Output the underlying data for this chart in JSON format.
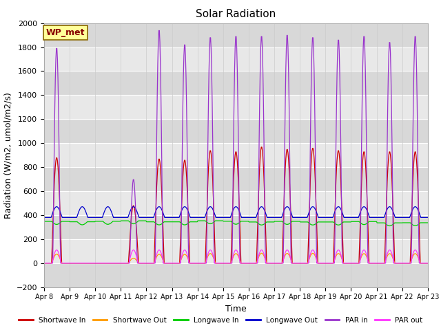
{
  "title": "Solar Radiation",
  "ylabel": "Radiation (W/m2, umol/m2/s)",
  "xlabel": "Time",
  "ylim": [
    -200,
    2000
  ],
  "yticks": [
    -200,
    0,
    200,
    400,
    600,
    800,
    1000,
    1200,
    1400,
    1600,
    1800,
    2000
  ],
  "xtick_labels": [
    "Apr 8",
    "Apr 9",
    "Apr 10",
    "Apr 11",
    "Apr 12",
    "Apr 13",
    "Apr 14",
    "Apr 15",
    "Apr 16",
    "Apr 17",
    "Apr 18",
    "Apr 19",
    "Apr 20",
    "Apr 21",
    "Apr 22",
    "Apr 23"
  ],
  "legend_labels": [
    "Shortwave In",
    "Shortwave Out",
    "Longwave In",
    "Longwave Out",
    "PAR in",
    "PAR out"
  ],
  "legend_colors": [
    "#cc0000",
    "#ff9900",
    "#00cc00",
    "#0000cc",
    "#9933cc",
    "#ff33ff"
  ],
  "annotation_text": "WP_met",
  "annotation_color": "#880000",
  "annotation_bg": "#ffff99",
  "annotation_edge": "#886600",
  "title_fontsize": 11,
  "label_fontsize": 9,
  "tick_fontsize": 8
}
